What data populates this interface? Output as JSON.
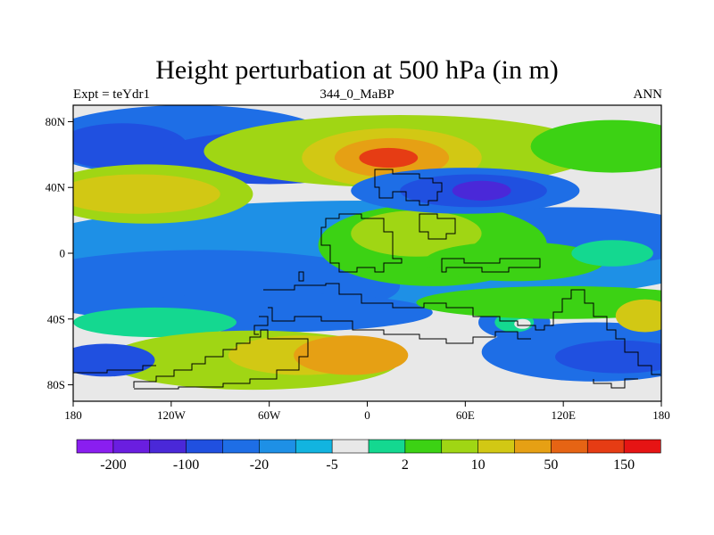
{
  "chart_data": {
    "type": "contour-map",
    "title": "Height perturbation at 500 hPa (in m)",
    "subtitle_left": "Expt = teYdr1",
    "subtitle_center": "344_0_MaBP",
    "subtitle_right": "ANN",
    "xlim": [
      -180,
      180
    ],
    "ylim": [
      -90,
      90
    ],
    "x_ticks": [
      {
        "value": -180,
        "label": "180"
      },
      {
        "value": -120,
        "label": "120W"
      },
      {
        "value": -60,
        "label": "60W"
      },
      {
        "value": 0,
        "label": "0"
      },
      {
        "value": 60,
        "label": "60E"
      },
      {
        "value": 120,
        "label": "120E"
      },
      {
        "value": 180,
        "label": "180"
      }
    ],
    "y_ticks": [
      {
        "value": 80,
        "label": "80N"
      },
      {
        "value": 40,
        "label": "40N"
      },
      {
        "value": 0,
        "label": "0"
      },
      {
        "value": -40,
        "label": "40S"
      },
      {
        "value": -80,
        "label": "80S"
      }
    ],
    "colorbar": {
      "colors": [
        "#8a1ef0",
        "#6a1ee0",
        "#4a28d8",
        "#2050e0",
        "#1e6ee6",
        "#1e90e6",
        "#12b4e0",
        "#e8e8e8",
        "#14d890",
        "#3cd214",
        "#a0d614",
        "#d2c814",
        "#e6a014",
        "#e66414",
        "#e63c14",
        "#e61414"
      ],
      "labels": [
        "-200",
        "-100",
        "-20",
        "-5",
        "2",
        "10",
        "50",
        "150"
      ]
    },
    "field": {
      "background": "#e8e8e8",
      "blobs": [
        {
          "lon": 0,
          "lat": 0,
          "rx": 220,
          "ry": 32,
          "value": 5
        },
        {
          "lon": -100,
          "lat": -20,
          "rx": 120,
          "ry": 22,
          "value": 4
        },
        {
          "lon": -20,
          "lat": 20,
          "rx": 70,
          "ry": 10,
          "value": 5
        },
        {
          "lon": 120,
          "lat": 10,
          "rx": 90,
          "ry": 18,
          "value": 4
        },
        {
          "lon": 40,
          "lat": 5,
          "rx": 70,
          "ry": 25,
          "value": 9
        },
        {
          "lon": 30,
          "lat": 12,
          "rx": 40,
          "ry": 14,
          "value": 10
        },
        {
          "lon": 90,
          "lat": -5,
          "rx": 55,
          "ry": 12,
          "value": 9
        },
        {
          "lon": 150,
          "lat": 0,
          "rx": 25,
          "ry": 8,
          "value": 8
        },
        {
          "lon": -110,
          "lat": 68,
          "rx": 90,
          "ry": 22,
          "value": 4
        },
        {
          "lon": -150,
          "lat": 65,
          "rx": 40,
          "ry": 14,
          "value": 3
        },
        {
          "lon": -60,
          "lat": 58,
          "rx": 70,
          "ry": 16,
          "value": 3
        },
        {
          "lon": -135,
          "lat": 36,
          "rx": 65,
          "ry": 18,
          "value": 10
        },
        {
          "lon": -140,
          "lat": 36,
          "rx": 50,
          "ry": 12,
          "value": 11
        },
        {
          "lon": 20,
          "lat": 62,
          "rx": 120,
          "ry": 22,
          "value": 10
        },
        {
          "lon": 15,
          "lat": 58,
          "rx": 55,
          "ry": 18,
          "value": 11
        },
        {
          "lon": 15,
          "lat": 58,
          "rx": 35,
          "ry": 12,
          "value": 12
        },
        {
          "lon": 13,
          "lat": 58,
          "rx": 18,
          "ry": 6,
          "value": 14
        },
        {
          "lon": 150,
          "lat": 65,
          "rx": 50,
          "ry": 16,
          "value": 9
        },
        {
          "lon": 60,
          "lat": 38,
          "rx": 70,
          "ry": 14,
          "value": 4
        },
        {
          "lon": 65,
          "lat": 38,
          "rx": 45,
          "ry": 10,
          "value": 3
        },
        {
          "lon": 70,
          "lat": 38,
          "rx": 18,
          "ry": 6,
          "value": 2
        },
        {
          "lon": -60,
          "lat": -36,
          "rx": 100,
          "ry": 12,
          "value": 4
        },
        {
          "lon": -130,
          "lat": -42,
          "rx": 50,
          "ry": 9,
          "value": 8
        },
        {
          "lon": -70,
          "lat": -65,
          "rx": 90,
          "ry": 18,
          "value": 10
        },
        {
          "lon": -40,
          "lat": -62,
          "rx": 45,
          "ry": 12,
          "value": 11
        },
        {
          "lon": -10,
          "lat": -62,
          "rx": 35,
          "ry": 12,
          "value": 12
        },
        {
          "lon": 140,
          "lat": -60,
          "rx": 70,
          "ry": 18,
          "value": 4
        },
        {
          "lon": 155,
          "lat": -63,
          "rx": 40,
          "ry": 10,
          "value": 3
        },
        {
          "lon": -160,
          "lat": -65,
          "rx": 30,
          "ry": 10,
          "value": 3
        },
        {
          "lon": 90,
          "lat": -42,
          "rx": 22,
          "ry": 10,
          "value": 4
        },
        {
          "lon": 90,
          "lat": -42,
          "rx": 12,
          "ry": 6,
          "value": 8
        },
        {
          "lon": 95,
          "lat": -43,
          "rx": 5,
          "ry": 3,
          "value": 7
        },
        {
          "lon": 120,
          "lat": -30,
          "rx": 90,
          "ry": 10,
          "value": 9
        },
        {
          "lon": 170,
          "lat": -38,
          "rx": 18,
          "ry": 10,
          "value": 11
        }
      ]
    }
  }
}
